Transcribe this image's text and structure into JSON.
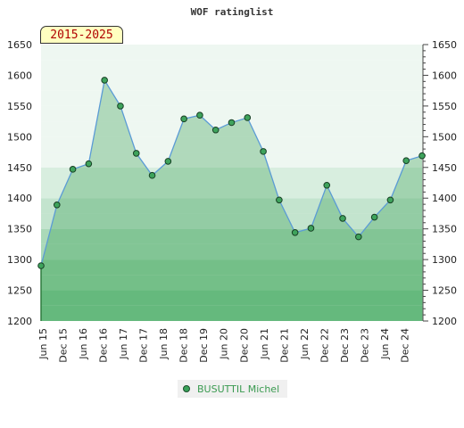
{
  "chart_data": {
    "type": "area",
    "title": "WOF ratinglist",
    "badge": "2015-2025",
    "ylim": [
      1200,
      1650
    ],
    "yticks": [
      1200,
      1250,
      1300,
      1350,
      1400,
      1450,
      1500,
      1550,
      1600,
      1650
    ],
    "xtick_labels": [
      "Jun 15",
      "Dec 15",
      "Jun 16",
      "Dec 16",
      "Jun 17",
      "Dec 17",
      "Jun 18",
      "Dec 18",
      "Dec 19",
      "Jun 20",
      "Dec 20",
      "Jun 21",
      "Dec 21",
      "Jun 22",
      "Dec 22",
      "Dec 23",
      "Dec 23",
      "Jun 24",
      "Dec 24"
    ],
    "series": [
      {
        "name": "BUSUTTIL Michel",
        "values": [
          1290,
          1389,
          1447,
          1456,
          1592,
          1550,
          1473,
          1437,
          1460,
          1529,
          1535,
          1511,
          1523,
          1531,
          1476,
          1397,
          1344,
          1351,
          1421,
          1367,
          1337,
          1369,
          1397,
          1461,
          1469
        ]
      }
    ],
    "band_colors": [
      "#7fc795",
      "#95d0a5",
      "#aad9b8",
      "#c3e4ce",
      "#d8eedf",
      "#eef7f1"
    ],
    "legend_placement": "bottom",
    "grid": true
  }
}
